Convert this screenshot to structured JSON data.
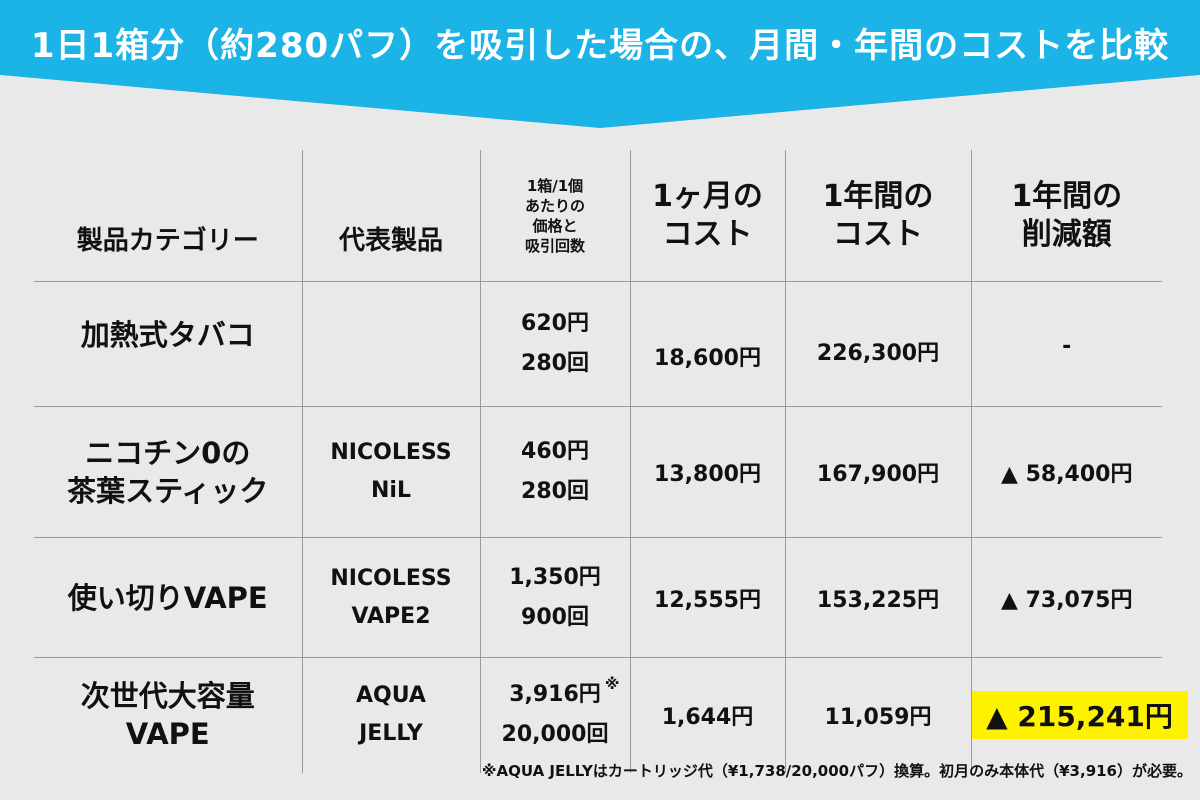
{
  "title": "1日1箱分（約280パフ）を吸引した場合の、月間・年間のコストを比較",
  "colors": {
    "banner": "#1cb3e6",
    "highlight": "#fff200",
    "background": "#e9e9e9"
  },
  "headers": {
    "category": "製品カテゴリー",
    "product": "代表製品",
    "price_lines": [
      "1箱/1個",
      "あたりの",
      "価格と",
      "吸引回数"
    ],
    "month_lines": [
      "1ヶ月の",
      "コスト"
    ],
    "year_lines": [
      "1年間の",
      "コスト"
    ],
    "saving_lines": [
      "1年間の",
      "削減額"
    ]
  },
  "rows": [
    {
      "category_lines": [
        "加熱式タバコ"
      ],
      "product_lines": [],
      "price": "620円",
      "puffs": "280回",
      "monthly": "18,600円",
      "yearly": "226,300円",
      "saving": "-"
    },
    {
      "category_lines": [
        "ニコチン0の",
        "茶葉スティック"
      ],
      "product_lines": [
        "NICOLESS",
        "NiL"
      ],
      "price": "460円",
      "puffs": "280回",
      "monthly": "13,800円",
      "yearly": "167,900円",
      "saving": "▲ 58,400円"
    },
    {
      "category_lines": [
        "使い切りVAPE"
      ],
      "product_lines": [
        "NICOLESS",
        "VAPE2"
      ],
      "price": "1,350円",
      "puffs": "900回",
      "monthly": "12,555円",
      "yearly": "153,225円",
      "saving": "▲ 73,075円"
    },
    {
      "category_lines": [
        "次世代大容量",
        "VAPE"
      ],
      "product_lines": [
        "AQUA",
        "JELLY"
      ],
      "price": "3,916円",
      "puffs": "20,000回",
      "note_mark": "※",
      "monthly": "1,644円",
      "yearly": "11,059円",
      "saving": "▲ 215,241円"
    }
  ],
  "footnote": "※AQUA JELLYはカートリッジ代（¥1,738/20,000パフ）換算。初月のみ本体代（¥3,916）が必要。"
}
